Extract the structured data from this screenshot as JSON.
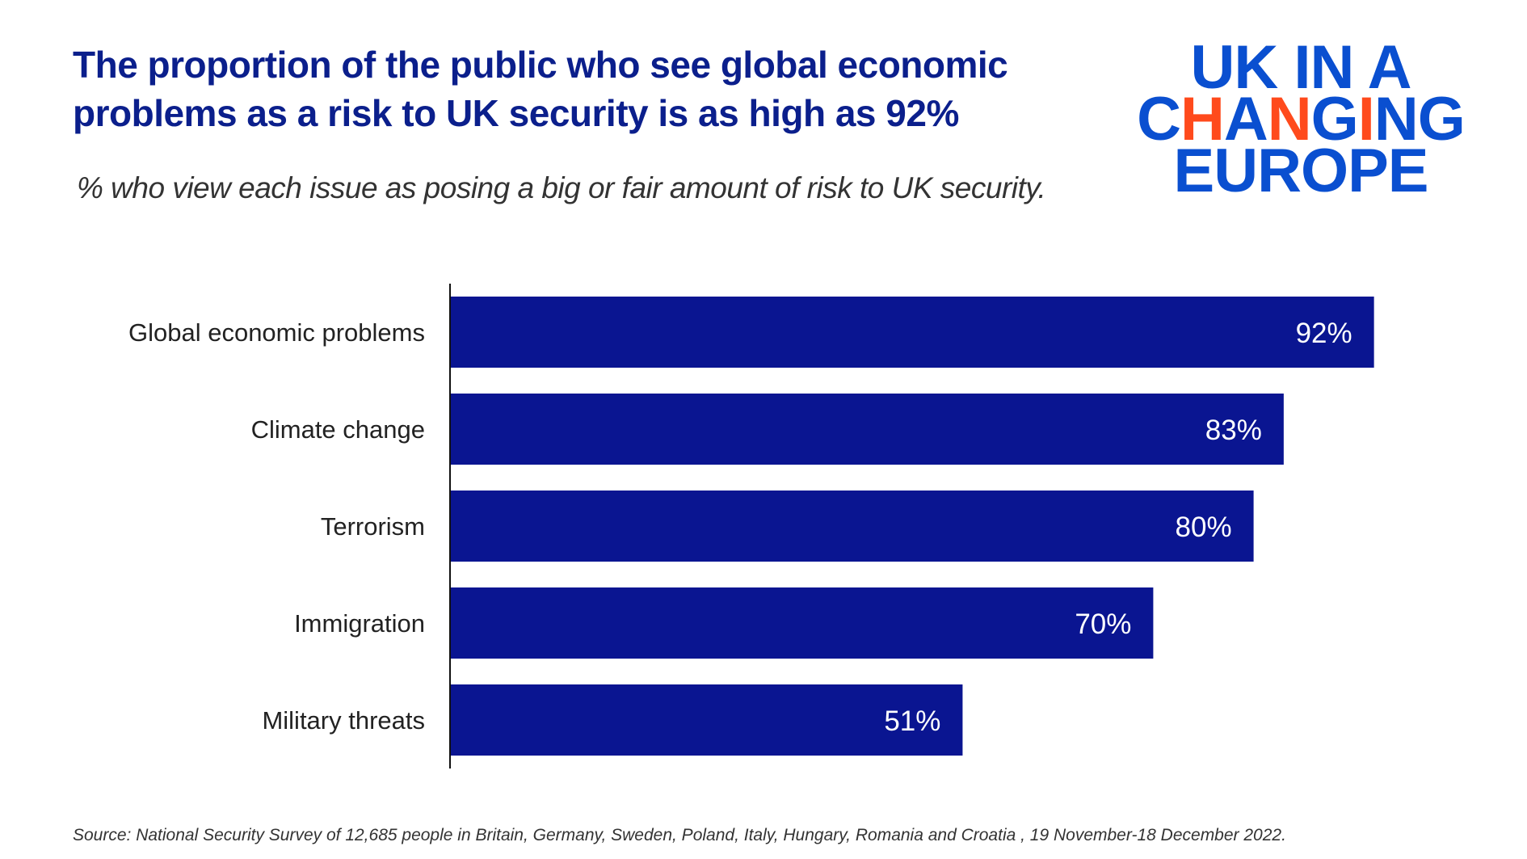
{
  "title": "The proportion of the public who see global economic problems as a risk to UK security is as high as 92%",
  "subtitle": "% who view each issue as posing a big or fair amount of risk to UK security.",
  "logo": {
    "line1": "UK IN A",
    "line2": "CHANGING",
    "line3": "EUROPE"
  },
  "source": "Source: National Security Survey  of 12,685 people in Britain, Germany, Sweden, Poland, Italy, Hungary, Romania and Croatia , 19 November-18 December 2022.",
  "colors": {
    "bar": "#0a1591",
    "title": "#0b1f8c",
    "logo_blue": "#0a4fd0",
    "logo_accent": "#ff4a1c"
  },
  "chart_data": {
    "type": "bar",
    "orientation": "horizontal",
    "categories": [
      "Global economic problems",
      "Climate change",
      "Terrorism",
      "Immigration",
      "Military threats"
    ],
    "values": [
      92,
      83,
      80,
      70,
      51
    ],
    "value_labels": [
      "92%",
      "83%",
      "80%",
      "70%",
      "51%"
    ],
    "xlabel": "",
    "ylabel": "",
    "xlim": [
      0,
      100
    ],
    "grid": false,
    "legend": "none"
  }
}
